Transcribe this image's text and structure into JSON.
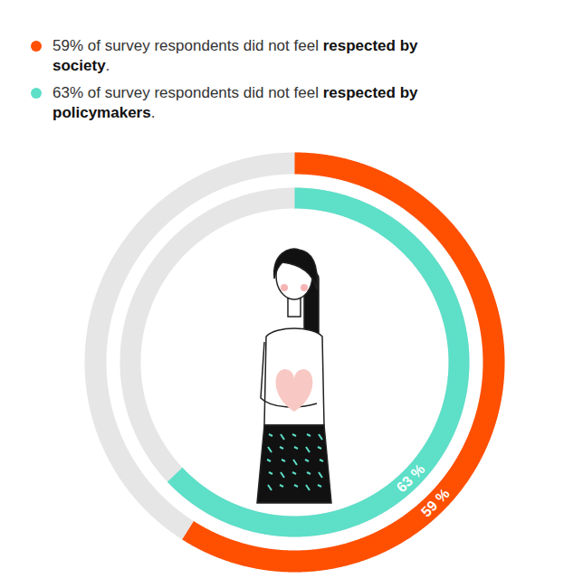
{
  "chart_data": {
    "type": "radial_bar",
    "series": [
      {
        "name": "59% of survey respondents did not feel respected by society.",
        "emphasis": "respected by society",
        "color": "#ff4f00",
        "values": [
          59
        ],
        "value_labels": [
          "59 %"
        ]
      },
      {
        "name": "63% of survey respondents did not feel respected by policymakers.",
        "emphasis": "respected by policymakers",
        "color": "#5ddfc8",
        "values": [
          63
        ],
        "value_labels": [
          "63 %"
        ]
      }
    ],
    "ylim": [
      0,
      100
    ],
    "tick_labels": false,
    "data_labels": true,
    "legend": "top-left"
  }
}
